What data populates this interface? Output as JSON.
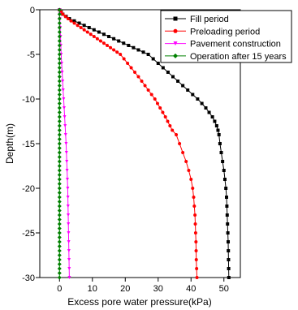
{
  "chart_data": {
    "type": "line",
    "title": "",
    "xlabel": "Excess pore water pressure(kPa)",
    "ylabel": "Depth(m)",
    "xlim": [
      -6,
      55
    ],
    "ylim": [
      -30,
      0
    ],
    "xticks": [
      0,
      10,
      20,
      30,
      40,
      50
    ],
    "yticks": [
      0,
      -5,
      -10,
      -15,
      -20,
      -25,
      -30
    ],
    "grid": false,
    "legend_position": "top-right",
    "series": [
      {
        "name": "Fill period",
        "color": "#000000",
        "marker": "square",
        "points": [
          [
            0,
            0
          ],
          [
            0.5,
            -0.25
          ],
          [
            1,
            -0.5
          ],
          [
            2,
            -0.75
          ],
          [
            3,
            -1
          ],
          [
            4.5,
            -1.25
          ],
          [
            6,
            -1.5
          ],
          [
            7.5,
            -1.75
          ],
          [
            9,
            -2
          ],
          [
            10.5,
            -2.25
          ],
          [
            12,
            -2.5
          ],
          [
            13.5,
            -2.75
          ],
          [
            15,
            -3
          ],
          [
            16.5,
            -3.25
          ],
          [
            18,
            -3.5
          ],
          [
            19.5,
            -3.75
          ],
          [
            21,
            -4
          ],
          [
            22.5,
            -4.25
          ],
          [
            24,
            -4.5
          ],
          [
            25.5,
            -4.75
          ],
          [
            27,
            -5
          ],
          [
            28.5,
            -5.5
          ],
          [
            30,
            -6
          ],
          [
            31.5,
            -6.5
          ],
          [
            33,
            -7
          ],
          [
            34.5,
            -7.5
          ],
          [
            36,
            -8
          ],
          [
            37.5,
            -8.5
          ],
          [
            39,
            -9
          ],
          [
            40.5,
            -9.5
          ],
          [
            42,
            -10
          ],
          [
            43.3,
            -10.5
          ],
          [
            44.5,
            -11
          ],
          [
            45.5,
            -11.5
          ],
          [
            46.5,
            -12
          ],
          [
            47.2,
            -12.5
          ],
          [
            47.8,
            -13
          ],
          [
            48.2,
            -13.5
          ],
          [
            48.5,
            -14
          ],
          [
            48.8,
            -15
          ],
          [
            49.2,
            -16
          ],
          [
            49.6,
            -17
          ],
          [
            50,
            -18
          ],
          [
            50.3,
            -19
          ],
          [
            50.6,
            -20
          ],
          [
            50.8,
            -21
          ],
          [
            50.9,
            -22
          ],
          [
            51,
            -23
          ],
          [
            51.1,
            -24
          ],
          [
            51.2,
            -25
          ],
          [
            51.3,
            -26
          ],
          [
            51.35,
            -27
          ],
          [
            51.4,
            -28
          ],
          [
            51.45,
            -29
          ],
          [
            51.5,
            -30
          ]
        ]
      },
      {
        "name": "Preloading period",
        "color": "#ff0000",
        "marker": "circle",
        "points": [
          [
            0,
            0
          ],
          [
            0.5,
            -0.25
          ],
          [
            1,
            -0.5
          ],
          [
            1.8,
            -0.75
          ],
          [
            2.6,
            -1
          ],
          [
            3.5,
            -1.25
          ],
          [
            4.5,
            -1.5
          ],
          [
            5.5,
            -1.75
          ],
          [
            6.5,
            -2
          ],
          [
            7.5,
            -2.25
          ],
          [
            8.5,
            -2.5
          ],
          [
            9.5,
            -2.75
          ],
          [
            10.5,
            -3
          ],
          [
            11.5,
            -3.25
          ],
          [
            12.5,
            -3.5
          ],
          [
            13.5,
            -3.75
          ],
          [
            14.5,
            -4
          ],
          [
            15.5,
            -4.25
          ],
          [
            16.5,
            -4.5
          ],
          [
            17.5,
            -4.75
          ],
          [
            18.5,
            -5
          ],
          [
            19.6,
            -5.5
          ],
          [
            20.7,
            -6
          ],
          [
            21.8,
            -6.5
          ],
          [
            22.9,
            -7
          ],
          [
            24,
            -7.5
          ],
          [
            25,
            -8
          ],
          [
            26,
            -8.5
          ],
          [
            27,
            -9
          ],
          [
            28,
            -9.5
          ],
          [
            29,
            -10
          ],
          [
            29.8,
            -10.5
          ],
          [
            30.6,
            -11
          ],
          [
            31.4,
            -11.5
          ],
          [
            32.2,
            -12
          ],
          [
            32.9,
            -12.5
          ],
          [
            33.6,
            -13
          ],
          [
            34.3,
            -13.5
          ],
          [
            35.5,
            -14
          ],
          [
            36.5,
            -15
          ],
          [
            37.5,
            -16
          ],
          [
            38.5,
            -17
          ],
          [
            39.3,
            -18
          ],
          [
            40,
            -19
          ],
          [
            40.5,
            -20
          ],
          [
            40.8,
            -21
          ],
          [
            41,
            -22
          ],
          [
            41.2,
            -23
          ],
          [
            41.3,
            -24
          ],
          [
            41.4,
            -25
          ],
          [
            41.5,
            -26
          ],
          [
            41.55,
            -27
          ],
          [
            41.6,
            -28
          ],
          [
            41.7,
            -29
          ],
          [
            41.8,
            -30
          ]
        ]
      },
      {
        "name": "Pavement construction",
        "color": "#ff00ff",
        "marker": "triangle-down",
        "points": [
          [
            0,
            0
          ],
          [
            0.05,
            -0.5
          ],
          [
            0.1,
            -1
          ],
          [
            0.2,
            -2
          ],
          [
            0.3,
            -3
          ],
          [
            0.4,
            -4
          ],
          [
            0.5,
            -5
          ],
          [
            0.65,
            -6
          ],
          [
            0.8,
            -7
          ],
          [
            0.95,
            -8
          ],
          [
            1.1,
            -9
          ],
          [
            1.25,
            -10
          ],
          [
            1.4,
            -11
          ],
          [
            1.55,
            -12
          ],
          [
            1.7,
            -13
          ],
          [
            1.85,
            -14
          ],
          [
            2,
            -15
          ],
          [
            2.1,
            -16
          ],
          [
            2.2,
            -17
          ],
          [
            2.3,
            -18
          ],
          [
            2.4,
            -19
          ],
          [
            2.5,
            -20
          ],
          [
            2.55,
            -21
          ],
          [
            2.6,
            -22
          ],
          [
            2.65,
            -23
          ],
          [
            2.7,
            -24
          ],
          [
            2.75,
            -25
          ],
          [
            2.8,
            -26
          ],
          [
            2.85,
            -27
          ],
          [
            2.9,
            -28
          ],
          [
            2.95,
            -29
          ],
          [
            3,
            -30
          ]
        ]
      },
      {
        "name": "Operation after 15 years",
        "color": "#008000",
        "marker": "diamond",
        "points": [
          [
            0,
            0
          ],
          [
            0,
            -0.5
          ],
          [
            0,
            -1
          ],
          [
            0,
            -1.5
          ],
          [
            0,
            -2
          ],
          [
            0,
            -2.5
          ],
          [
            0,
            -3
          ],
          [
            0,
            -3.5
          ],
          [
            0,
            -4
          ],
          [
            0,
            -4.5
          ],
          [
            0,
            -5
          ],
          [
            0,
            -5.5
          ],
          [
            0,
            -6
          ],
          [
            0,
            -6.5
          ],
          [
            0,
            -7
          ],
          [
            0,
            -7.5
          ],
          [
            0,
            -8
          ],
          [
            0,
            -8.5
          ],
          [
            0,
            -9
          ],
          [
            0,
            -9.5
          ],
          [
            0,
            -10
          ],
          [
            0,
            -10.5
          ],
          [
            0,
            -11
          ],
          [
            0,
            -11.5
          ],
          [
            0,
            -12
          ],
          [
            0,
            -12.5
          ],
          [
            0,
            -13
          ],
          [
            0,
            -13.5
          ],
          [
            0,
            -14
          ],
          [
            0,
            -14.5
          ],
          [
            0,
            -15
          ],
          [
            0,
            -15.5
          ],
          [
            0,
            -16
          ],
          [
            0,
            -16.5
          ],
          [
            0,
            -17
          ],
          [
            0,
            -17.5
          ],
          [
            0,
            -18
          ],
          [
            0,
            -18.5
          ],
          [
            0,
            -19
          ],
          [
            0,
            -19.5
          ],
          [
            0,
            -20
          ],
          [
            0,
            -20.5
          ],
          [
            0,
            -21
          ],
          [
            0,
            -21.5
          ],
          [
            0,
            -22
          ],
          [
            0,
            -22.5
          ],
          [
            0,
            -23
          ],
          [
            0,
            -23.5
          ],
          [
            0,
            -24
          ],
          [
            0,
            -24.5
          ],
          [
            0,
            -25
          ],
          [
            0,
            -25.5
          ],
          [
            0,
            -26
          ],
          [
            0,
            -26.5
          ],
          [
            0,
            -27
          ],
          [
            0,
            -27.5
          ],
          [
            0,
            -28
          ],
          [
            0,
            -28.5
          ],
          [
            0,
            -29
          ],
          [
            0,
            -29.5
          ],
          [
            0,
            -30
          ]
        ]
      }
    ]
  }
}
